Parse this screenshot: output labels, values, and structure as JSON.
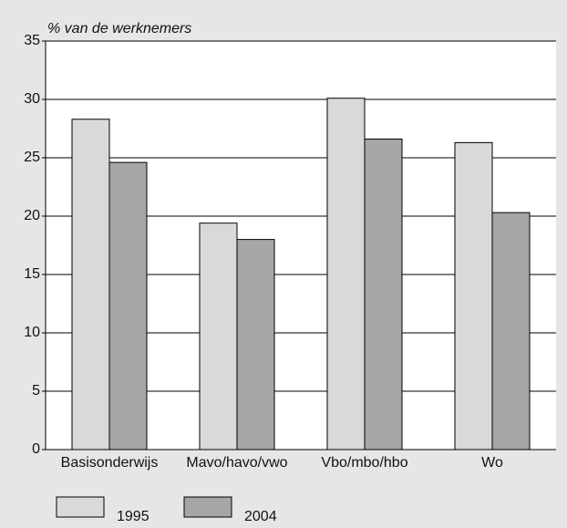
{
  "chart_data": {
    "type": "bar",
    "title": "% van de werknemers",
    "categories": [
      "Basisonderwijs",
      "Mavo/havo/vwo",
      "Vbo/mbo/hbo",
      "Wo"
    ],
    "series": [
      {
        "name": "1995",
        "color": "#d9d9d9",
        "values": [
          28.3,
          19.4,
          30.1,
          26.3
        ]
      },
      {
        "name": "2004",
        "color": "#a6a6a6",
        "values": [
          24.6,
          18.0,
          26.6,
          20.3
        ]
      }
    ],
    "ylim": [
      0,
      35
    ],
    "yticks": [
      0,
      5,
      10,
      15,
      20,
      25,
      30,
      35
    ],
    "grid": true,
    "legend": "bottom"
  }
}
